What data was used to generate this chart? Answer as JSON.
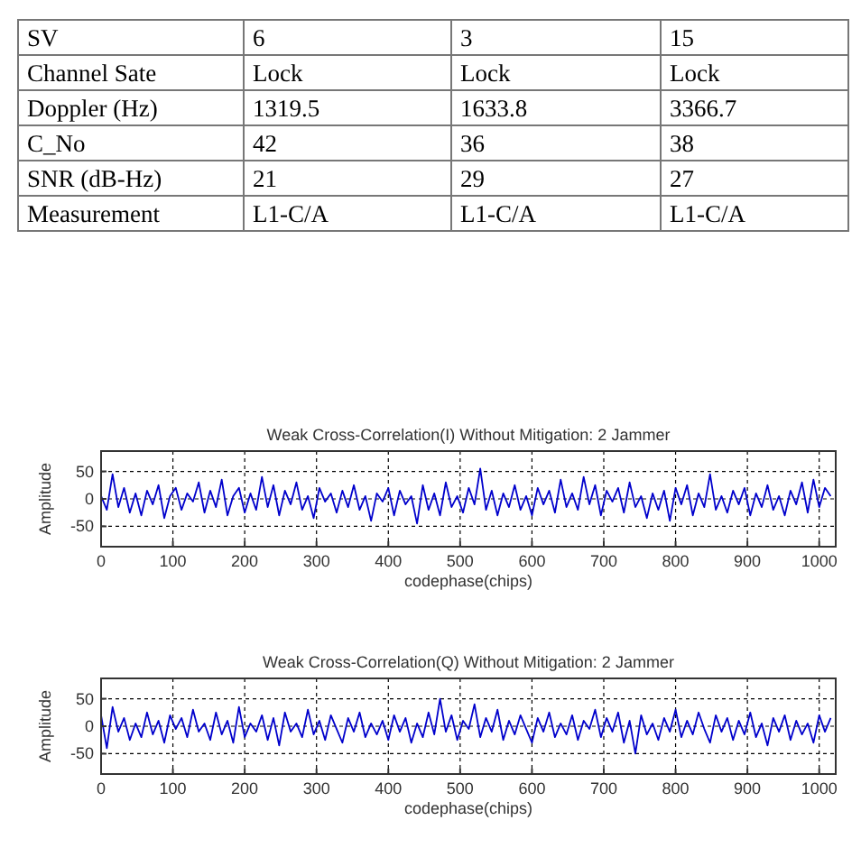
{
  "chart_data": [
    {
      "type": "other",
      "cell_labels": [
        [
          "SV",
          "6",
          "3",
          "15"
        ],
        [
          "Channel Sate",
          "Lock",
          "Lock",
          "Lock"
        ],
        [
          "Doppler (Hz)",
          "1319.5",
          "1633.8",
          "3366.7"
        ],
        [
          "C_No",
          "42",
          "36",
          "38"
        ],
        [
          "SNR (dB-Hz)",
          "21",
          "29",
          "27"
        ],
        [
          "Measurement",
          "L1-C/A",
          "L1-C/A",
          "L1-C/A"
        ]
      ]
    },
    {
      "type": "line",
      "title": "Weak Cross-Correlation(I) Without Mitigation: 2 Jammer",
      "xlabel": "codephase(chips)",
      "ylabel": "Amplitude",
      "xlim": [
        0,
        1023
      ],
      "ylim": [
        -87,
        87
      ],
      "xticks": [
        0,
        100,
        200,
        300,
        400,
        500,
        600,
        700,
        800,
        900,
        1000
      ],
      "yticks": [
        -50,
        0,
        50
      ],
      "grid": true,
      "x": [
        0,
        8,
        16,
        24,
        32,
        40,
        48,
        56,
        64,
        72,
        80,
        88,
        96,
        104,
        112,
        120,
        128,
        136,
        144,
        152,
        160,
        168,
        176,
        184,
        192,
        200,
        208,
        216,
        224,
        232,
        240,
        248,
        256,
        264,
        272,
        280,
        288,
        296,
        304,
        312,
        320,
        328,
        336,
        344,
        352,
        360,
        368,
        376,
        384,
        392,
        400,
        408,
        416,
        424,
        432,
        440,
        448,
        456,
        464,
        472,
        480,
        488,
        496,
        504,
        512,
        520,
        528,
        536,
        544,
        552,
        560,
        568,
        576,
        584,
        592,
        600,
        608,
        616,
        624,
        632,
        640,
        648,
        656,
        664,
        672,
        680,
        688,
        696,
        704,
        712,
        720,
        728,
        736,
        744,
        752,
        760,
        768,
        776,
        784,
        792,
        800,
        808,
        816,
        824,
        832,
        840,
        848,
        856,
        864,
        872,
        880,
        888,
        896,
        904,
        912,
        920,
        928,
        936,
        944,
        952,
        960,
        968,
        976,
        984,
        992,
        1000,
        1008,
        1016
      ],
      "series": [
        {
          "color": "#0000cc",
          "values": [
            5,
            -20,
            45,
            -15,
            20,
            -25,
            10,
            -30,
            15,
            -10,
            25,
            -35,
            5,
            20,
            -20,
            10,
            -5,
            30,
            -25,
            15,
            -15,
            35,
            -30,
            5,
            20,
            -25,
            10,
            -20,
            40,
            -15,
            25,
            -30,
            15,
            -10,
            30,
            -20,
            5,
            -35,
            20,
            -5,
            10,
            -25,
            15,
            -15,
            25,
            -20,
            5,
            -40,
            10,
            -5,
            20,
            -30,
            15,
            -10,
            5,
            -45,
            25,
            -20,
            10,
            -30,
            30,
            -15,
            5,
            -25,
            20,
            -10,
            55,
            -20,
            15,
            -30,
            10,
            -15,
            25,
            -20,
            5,
            -30,
            20,
            -10,
            15,
            -25,
            35,
            -15,
            10,
            -20,
            40,
            -10,
            25,
            -30,
            15,
            -5,
            20,
            -25,
            30,
            -15,
            5,
            -35,
            10,
            -20,
            15,
            -40,
            20,
            -10,
            25,
            -30,
            10,
            -15,
            45,
            -20,
            5,
            -25,
            15,
            -10,
            20,
            -30,
            10,
            -15,
            25,
            -20,
            5,
            -30,
            15,
            -10,
            30,
            -25,
            35,
            -15,
            20,
            5
          ]
        }
      ]
    },
    {
      "type": "line",
      "title": "Weak Cross-Correlation(Q) Without Mitigation: 2 Jammer",
      "xlabel": "codephase(chips)",
      "ylabel": "Amplitude",
      "xlim": [
        0,
        1023
      ],
      "ylim": [
        -87,
        87
      ],
      "xticks": [
        0,
        100,
        200,
        300,
        400,
        500,
        600,
        700,
        800,
        900,
        1000
      ],
      "yticks": [
        -50,
        0,
        50
      ],
      "grid": true,
      "x": [
        0,
        8,
        16,
        24,
        32,
        40,
        48,
        56,
        64,
        72,
        80,
        88,
        96,
        104,
        112,
        120,
        128,
        136,
        144,
        152,
        160,
        168,
        176,
        184,
        192,
        200,
        208,
        216,
        224,
        232,
        240,
        248,
        256,
        264,
        272,
        280,
        288,
        296,
        304,
        312,
        320,
        328,
        336,
        344,
        352,
        360,
        368,
        376,
        384,
        392,
        400,
        408,
        416,
        424,
        432,
        440,
        448,
        456,
        464,
        472,
        480,
        488,
        496,
        504,
        512,
        520,
        528,
        536,
        544,
        552,
        560,
        568,
        576,
        584,
        592,
        600,
        608,
        616,
        624,
        632,
        640,
        648,
        656,
        664,
        672,
        680,
        688,
        696,
        704,
        712,
        720,
        728,
        736,
        744,
        752,
        760,
        768,
        776,
        784,
        792,
        800,
        808,
        816,
        824,
        832,
        840,
        848,
        856,
        864,
        872,
        880,
        888,
        896,
        904,
        912,
        920,
        928,
        936,
        944,
        952,
        960,
        968,
        976,
        984,
        992,
        1000,
        1008,
        1016
      ],
      "series": [
        {
          "color": "#0000cc",
          "values": [
            20,
            -40,
            35,
            -10,
            15,
            -25,
            5,
            -20,
            25,
            -15,
            10,
            -30,
            20,
            -5,
            15,
            -20,
            30,
            -10,
            5,
            -25,
            25,
            -15,
            10,
            -30,
            35,
            -20,
            5,
            -10,
            20,
            -25,
            15,
            -35,
            25,
            -10,
            5,
            -20,
            30,
            -15,
            10,
            -25,
            20,
            -5,
            -30,
            15,
            -10,
            25,
            -20,
            5,
            -15,
            10,
            -25,
            20,
            -10,
            15,
            -30,
            5,
            -20,
            25,
            -15,
            50,
            -10,
            20,
            -25,
            10,
            -5,
            40,
            -20,
            15,
            -10,
            30,
            -25,
            10,
            -15,
            20,
            -5,
            -30,
            15,
            -10,
            25,
            -20,
            5,
            -15,
            20,
            -25,
            10,
            -5,
            30,
            -20,
            15,
            -10,
            25,
            -30,
            10,
            -50,
            20,
            -15,
            5,
            -25,
            15,
            -10,
            30,
            -20,
            10,
            -15,
            25,
            -5,
            -30,
            20,
            -10,
            15,
            -25,
            10,
            -15,
            25,
            -20,
            5,
            -35,
            15,
            -10,
            20,
            -25,
            10,
            -15,
            5,
            -30,
            20,
            -10,
            15
          ]
        }
      ]
    }
  ]
}
